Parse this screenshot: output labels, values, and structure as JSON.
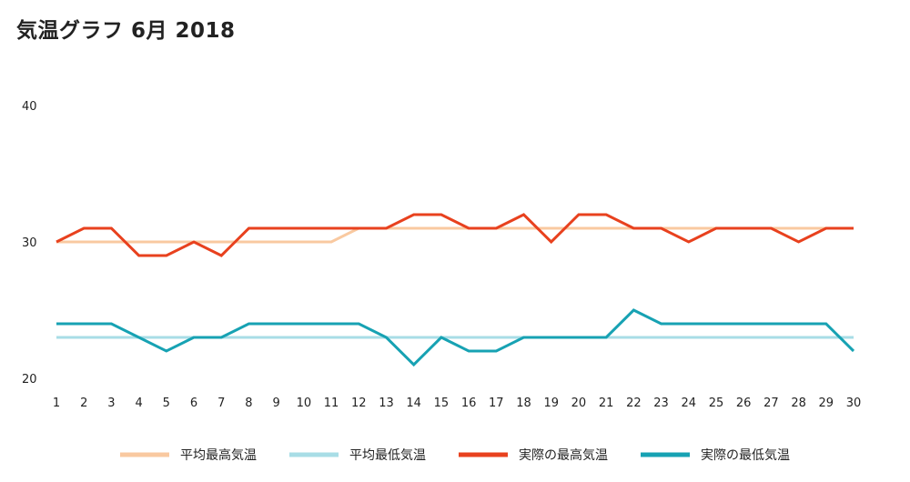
{
  "header": {
    "title": "気温グラフ 6月 2018"
  },
  "chart_data": {
    "type": "line",
    "title": "気温グラフ 6月 2018",
    "x": [
      1,
      2,
      3,
      4,
      5,
      6,
      7,
      8,
      9,
      10,
      11,
      12,
      13,
      14,
      15,
      16,
      17,
      18,
      19,
      20,
      21,
      22,
      23,
      24,
      25,
      26,
      27,
      28,
      29,
      30
    ],
    "y_ticks": [
      20,
      30,
      40
    ],
    "ylim": [
      20,
      40
    ],
    "grid": false,
    "legend_position": "bottom",
    "series": [
      {
        "name": "平均最高気温",
        "color": "#f9c9a0",
        "values": [
          30,
          30,
          30,
          30,
          30,
          30,
          30,
          30,
          30,
          30,
          30,
          31,
          31,
          31,
          31,
          31,
          31,
          31,
          31,
          31,
          31,
          31,
          31,
          31,
          31,
          31,
          31,
          31,
          31,
          31
        ]
      },
      {
        "name": "平均最低気温",
        "color": "#a8dde6",
        "values": [
          23,
          23,
          23,
          23,
          23,
          23,
          23,
          23,
          23,
          23,
          23,
          23,
          23,
          23,
          23,
          23,
          23,
          23,
          23,
          23,
          23,
          23,
          23,
          23,
          23,
          23,
          23,
          23,
          23,
          23
        ]
      },
      {
        "name": "実際の最高気温",
        "color": "#e8411e",
        "values": [
          30,
          31,
          31,
          29,
          29,
          30,
          29,
          31,
          31,
          31,
          31,
          31,
          31,
          32,
          32,
          31,
          31,
          32,
          30,
          32,
          32,
          31,
          31,
          30,
          31,
          31,
          31,
          30,
          31,
          31
        ]
      },
      {
        "name": "実際の最低気温",
        "color": "#17a2b3",
        "values": [
          24,
          24,
          24,
          23,
          22,
          23,
          23,
          24,
          24,
          24,
          24,
          24,
          23,
          21,
          23,
          22,
          22,
          23,
          23,
          23,
          23,
          25,
          24,
          24,
          24,
          24,
          24,
          24,
          24,
          22
        ]
      }
    ]
  }
}
